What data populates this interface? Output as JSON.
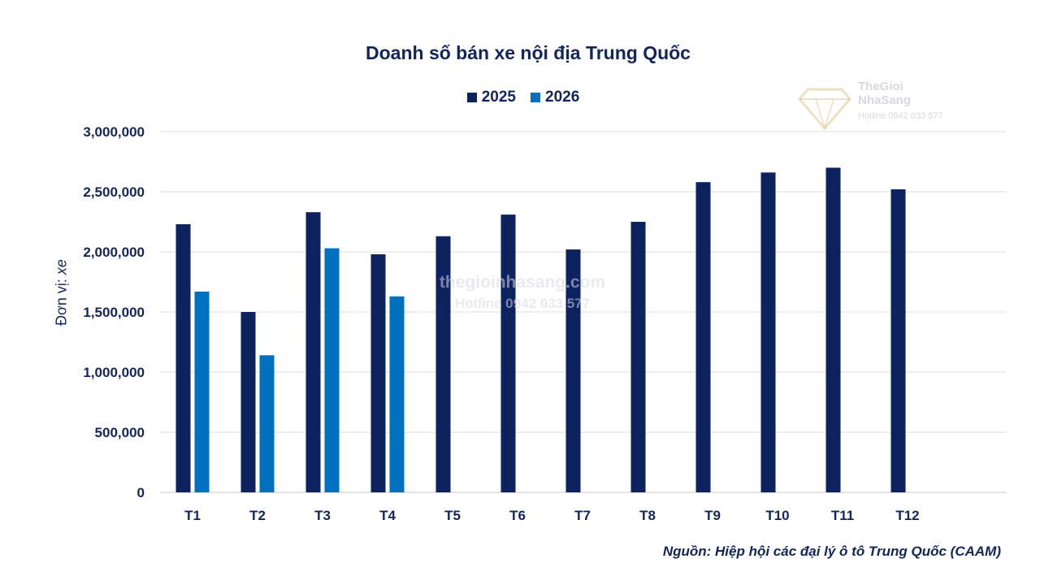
{
  "chart_data": {
    "type": "bar",
    "title": "Doanh số bán xe nội địa Trung Quốc",
    "ylabel": "Đơn vị:",
    "ylabel_unit": "xe",
    "xlabel": "",
    "ylim": [
      0,
      3000000
    ],
    "yticks": [
      0,
      500000,
      1000000,
      1500000,
      2000000,
      2500000,
      3000000
    ],
    "ytick_labels": [
      "0",
      "500,000",
      "1,000,000",
      "1,500,000",
      "2,000,000",
      "2,500,000",
      "3,000,000"
    ],
    "grid": true,
    "legend_position": "top-center",
    "categories": [
      "T1",
      "T2",
      "T3",
      "T4",
      "T5",
      "T6",
      "T7",
      "T8",
      "T9",
      "T10",
      "T11",
      "T12"
    ],
    "series": [
      {
        "name": "2025",
        "color": "#0e2260",
        "values": [
          2230000,
          1500000,
          2330000,
          1980000,
          2130000,
          2310000,
          2020000,
          2250000,
          2580000,
          2660000,
          2700000,
          2520000
        ]
      },
      {
        "name": "2026",
        "color": "#0070c0",
        "values": [
          1670000,
          1140000,
          2030000,
          1630000,
          null,
          null,
          null,
          null,
          null,
          null,
          null,
          null
        ]
      }
    ],
    "source": "Nguồn: Hiệp hội các đại lý ô tô Trung Quốc (CAAM)"
  },
  "watermark": {
    "line1": "thegioinhasang.com",
    "line2": "Hotline 0942 033 577"
  },
  "logo": {
    "icon": "diamond-logo-icon",
    "line1": "TheGioi",
    "line2": "NhaSang",
    "line3": "Hotline 0942 033 577"
  }
}
